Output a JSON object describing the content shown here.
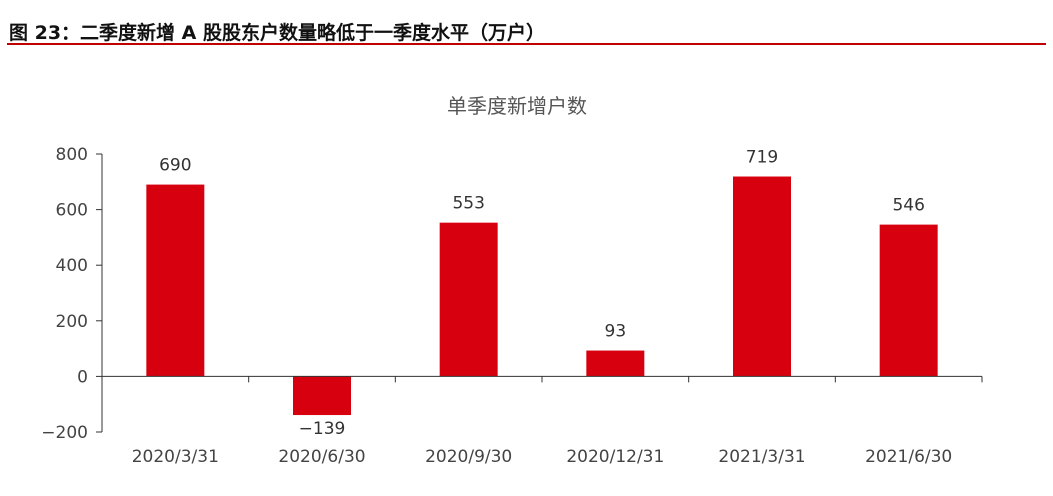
{
  "figure_title": "图 23：二季度新增 A 股股东户数量略低于一季度水平（万户）",
  "chart_data": {
    "type": "bar",
    "title": "单季度新增户数",
    "categories": [
      "2020/3/31",
      "2020/6/30",
      "2020/9/30",
      "2020/12/31",
      "2021/3/31",
      "2021/6/30"
    ],
    "values": [
      690,
      -139,
      553,
      93,
      719,
      546
    ],
    "data_labels": [
      "690",
      "−139",
      "553",
      "93",
      "719",
      "546"
    ],
    "ylim": [
      -200,
      800
    ],
    "yticks": [
      -200,
      0,
      200,
      400,
      600,
      800
    ],
    "ytick_labels": [
      "−200",
      "0",
      "200",
      "400",
      "600",
      "800"
    ],
    "grid": false,
    "bar_color": "#d7000f"
  }
}
